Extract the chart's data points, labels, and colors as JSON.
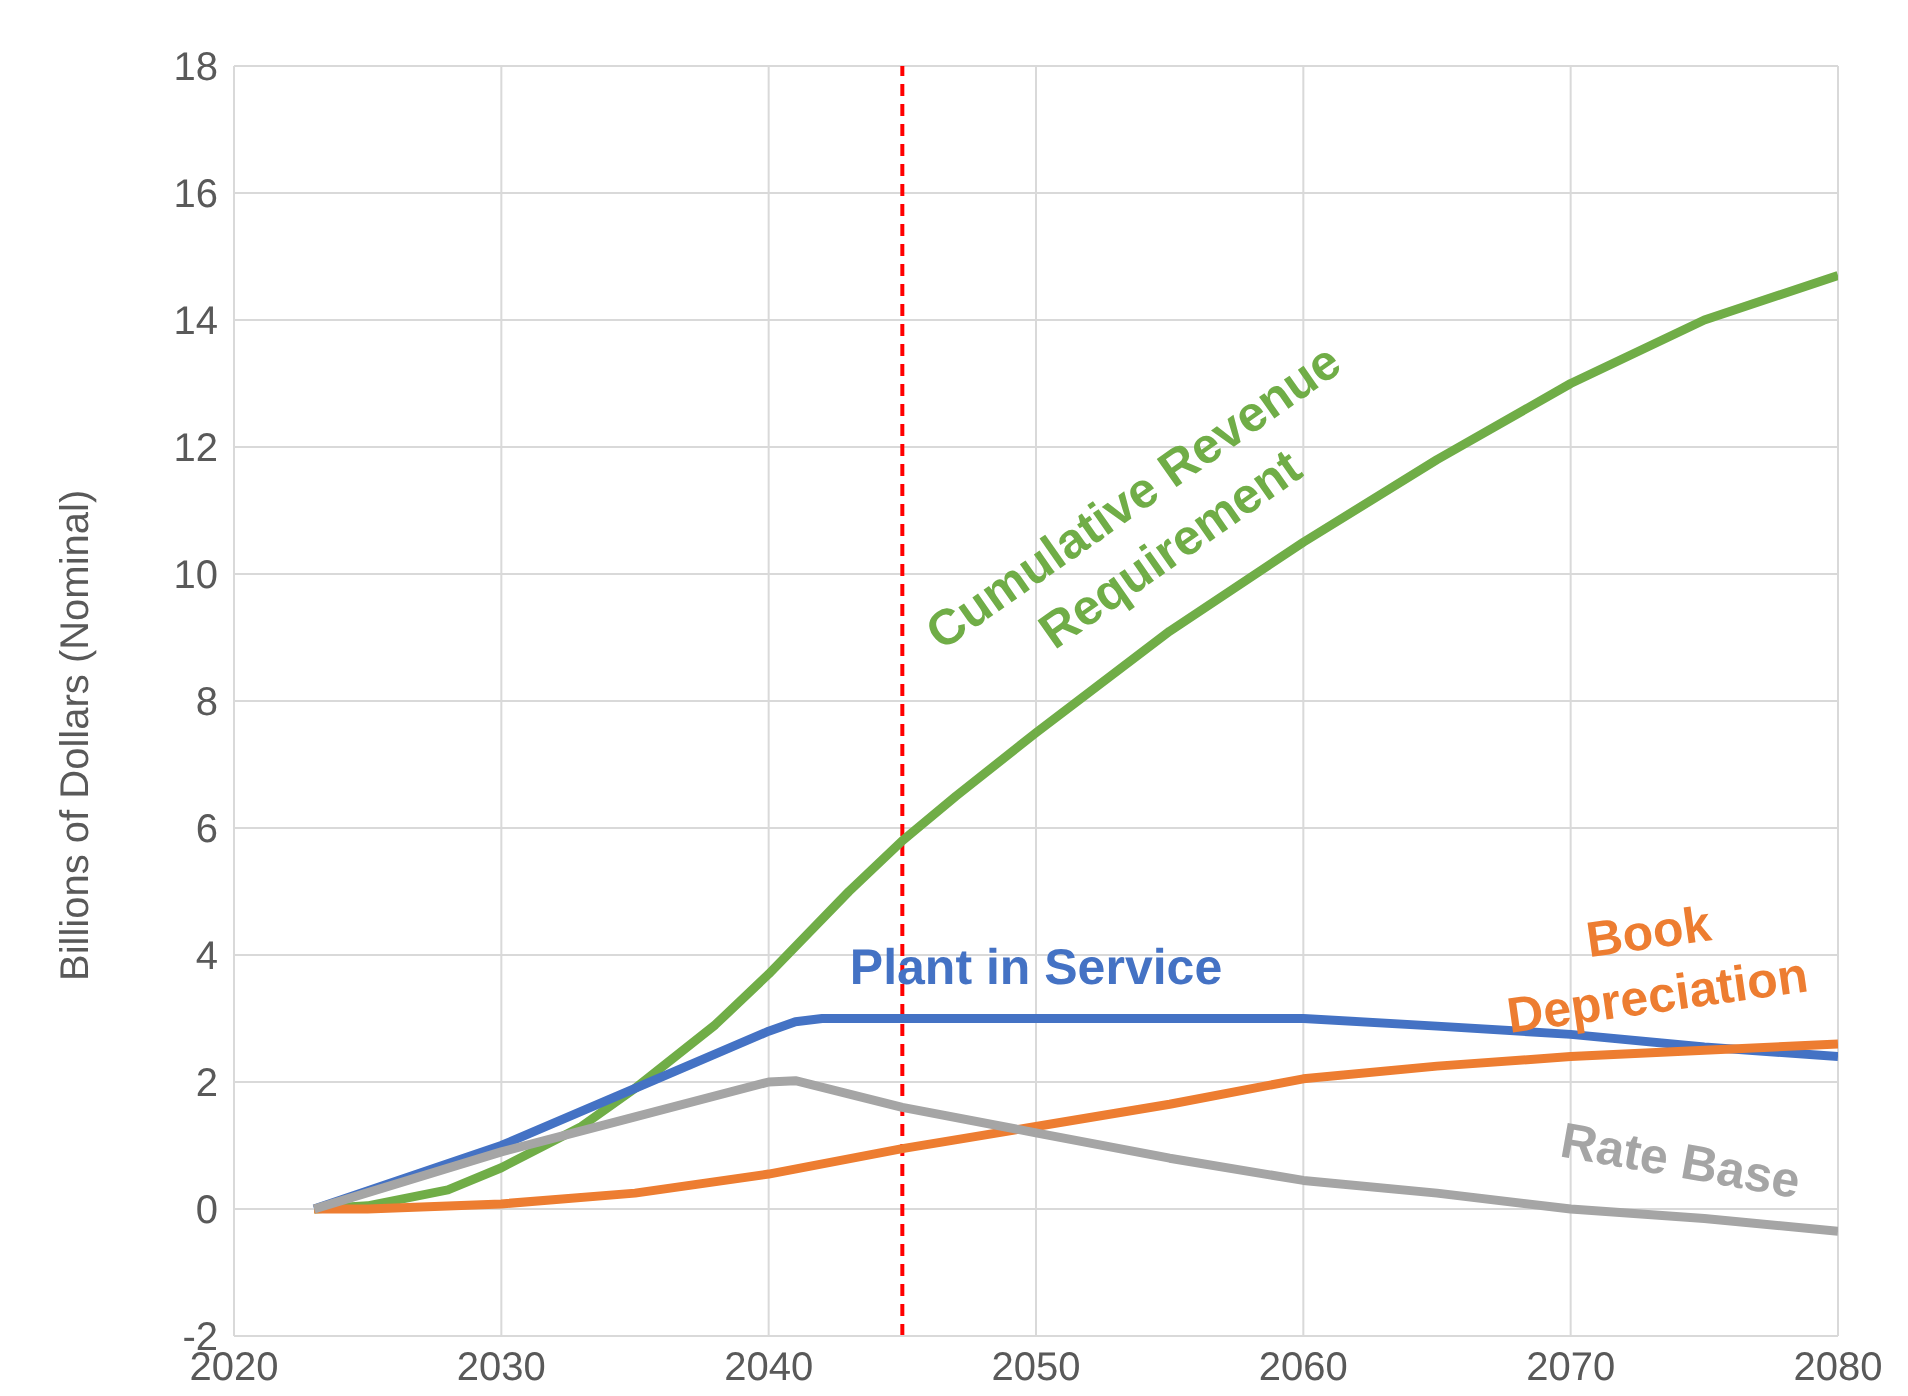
{
  "chart_data": {
    "type": "line",
    "ylabel": "Billions of Dollars (Nominal)",
    "xlim": [
      2020,
      2080
    ],
    "xticks": [
      2020,
      2030,
      2040,
      2050,
      2060,
      2070,
      2080
    ],
    "ylim": [
      -2,
      18
    ],
    "yticks": [
      -2,
      0,
      2,
      4,
      6,
      8,
      10,
      12,
      14,
      16,
      18
    ],
    "grid": true,
    "marker": "none",
    "line_style": "solid",
    "ref_lines": [
      {
        "axis": "x",
        "value": 2045,
        "color": "#ff0000",
        "line_style": "dashed"
      }
    ],
    "series": [
      {
        "name": "Cumulative Revenue Requirement",
        "color": "#70ad47",
        "x": [
          2023,
          2025,
          2028,
          2030,
          2033,
          2035,
          2038,
          2040,
          2043,
          2045,
          2047,
          2050,
          2055,
          2060,
          2065,
          2070,
          2075,
          2080
        ],
        "values": [
          0,
          0.05,
          0.3,
          0.65,
          1.3,
          1.9,
          2.9,
          3.7,
          5,
          5.8,
          6.5,
          7.5,
          9.1,
          10.5,
          11.8,
          13,
          14,
          14.7
        ]
      },
      {
        "name": "Plant in Service",
        "color": "#4472c4",
        "x": [
          2023,
          2030,
          2035,
          2040,
          2041,
          2042,
          2060,
          2065,
          2070,
          2075,
          2080
        ],
        "values": [
          0,
          1.0,
          1.9,
          2.8,
          2.95,
          3.0,
          3.0,
          2.88,
          2.75,
          2.55,
          2.4
        ]
      },
      {
        "name": "Book Depreciation",
        "color": "#ed7d31",
        "x": [
          2023,
          2025,
          2030,
          2035,
          2040,
          2045,
          2050,
          2055,
          2060,
          2065,
          2070,
          2075,
          2080
        ],
        "values": [
          0,
          0,
          0.08,
          0.25,
          0.55,
          0.95,
          1.3,
          1.65,
          2.05,
          2.25,
          2.4,
          2.5,
          2.6
        ]
      },
      {
        "name": "Rate Base",
        "color": "#a5a5a5",
        "x": [
          2023,
          2030,
          2035,
          2040,
          2041,
          2045,
          2050,
          2055,
          2060,
          2065,
          2070,
          2075,
          2080
        ],
        "values": [
          0,
          0.9,
          1.45,
          2.0,
          2.02,
          1.6,
          1.2,
          0.8,
          0.45,
          0.25,
          0,
          -0.15,
          -0.35
        ]
      }
    ]
  }
}
